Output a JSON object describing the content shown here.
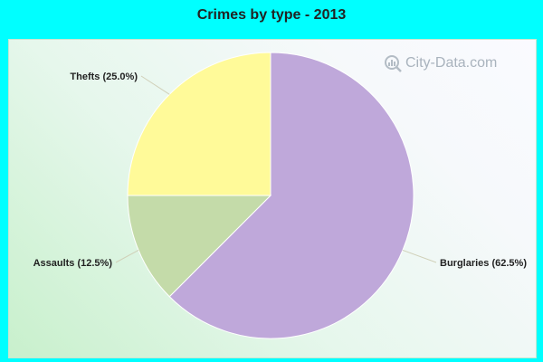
{
  "chart_data": {
    "type": "pie",
    "title": "Crimes by type - 2013",
    "slices": [
      {
        "label": "Burglaries",
        "display": "Burglaries (62.5%)",
        "value": 62.5,
        "color": "#BFA8DA"
      },
      {
        "label": "Assaults",
        "display": "Assaults (12.5%)",
        "value": 12.5,
        "color": "#C4DBA9"
      },
      {
        "label": "Thefts",
        "display": "Thefts (25.0%)",
        "value": 25.0,
        "color": "#FFFA99"
      }
    ],
    "legend": "none"
  },
  "watermark": {
    "text": "City-Data.com",
    "icon": "search-magnifier-icon"
  },
  "colors": {
    "background": "#00FFFF",
    "slice_stroke": "#FFFFFF"
  }
}
